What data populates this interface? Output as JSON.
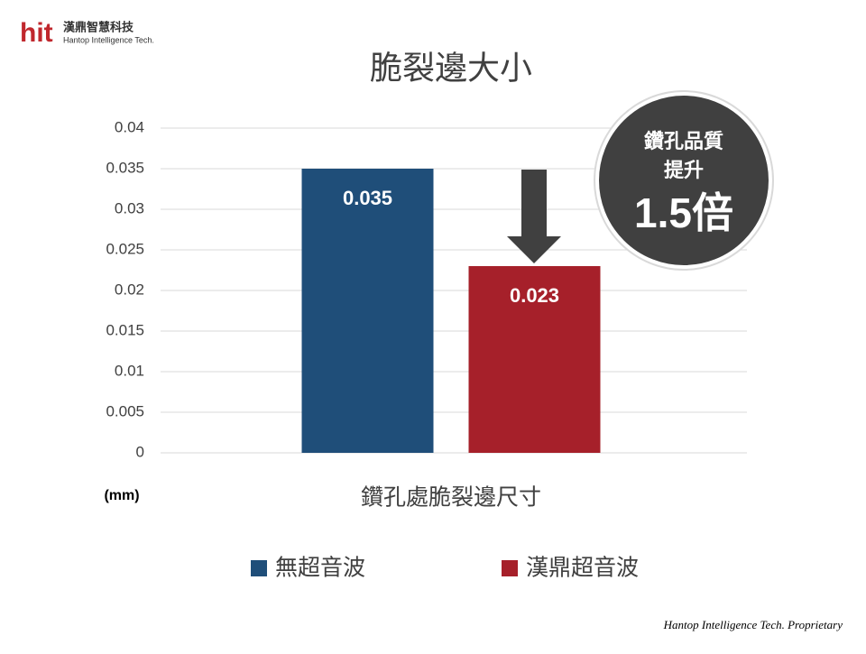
{
  "logo": {
    "mark": "hit",
    "name": "漢鼎智慧科技",
    "subname": "Hantop Intelligence Tech."
  },
  "footer": "Hantop Intelligence Tech. Proprietary",
  "badge": {
    "line1": "鑽孔品質",
    "line2": "提升",
    "highlight": "1.5倍"
  },
  "chart_data": {
    "type": "bar",
    "title": "脆裂邊大小",
    "y_unit": "(mm)",
    "categories": [
      "鑽孔處脆裂邊尺寸"
    ],
    "series": [
      {
        "name": "無超音波",
        "color": "#1f4e79",
        "values": [
          0.035
        ]
      },
      {
        "name": "漢鼎超音波",
        "color": "#a6202a",
        "values": [
          0.023
        ]
      }
    ],
    "ylim": [
      0,
      0.04
    ],
    "yticks": [
      0,
      0.005,
      0.01,
      0.015,
      0.02,
      0.025,
      0.03,
      0.035,
      0.04
    ],
    "grid": true
  }
}
